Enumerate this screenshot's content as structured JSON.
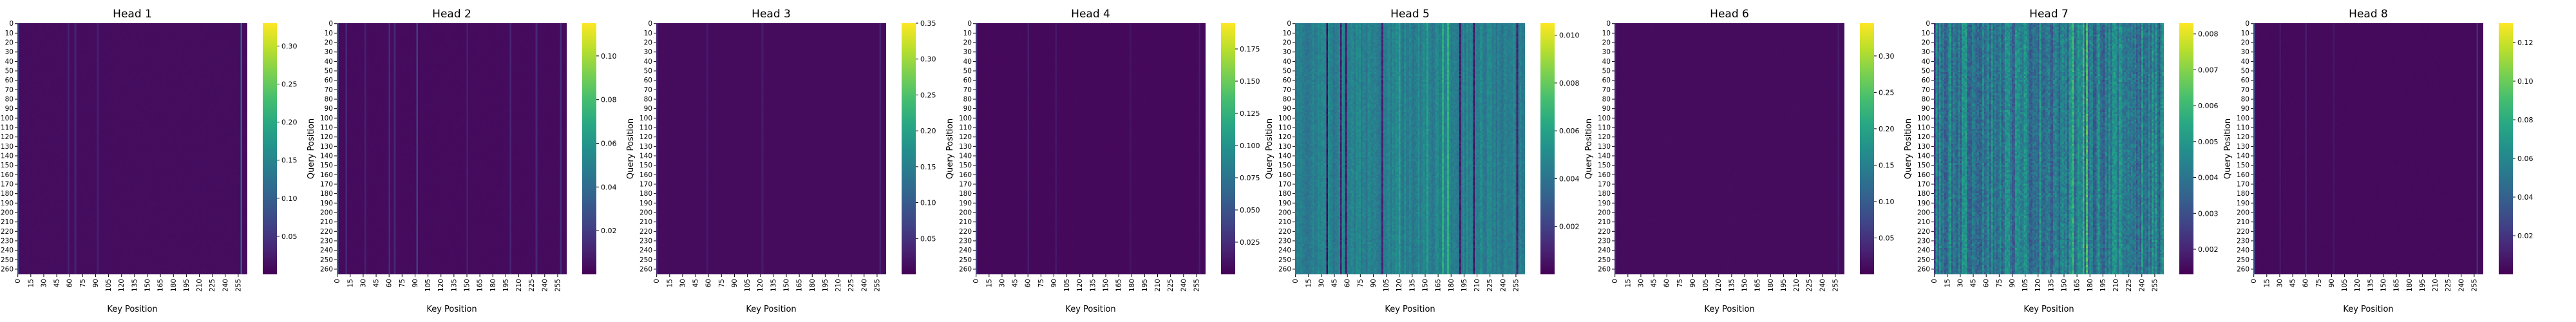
{
  "chart_data": [
    {
      "type": "heatmap",
      "title": "Head 1",
      "xlabel": "Key Position",
      "ylabel": "Query Position",
      "x_ticks": [
        0,
        15,
        30,
        45,
        60,
        75,
        90,
        105,
        120,
        135,
        150,
        165,
        180,
        195,
        210,
        225,
        240,
        255
      ],
      "y_ticks": [
        0,
        10,
        20,
        30,
        40,
        50,
        60,
        70,
        80,
        90,
        100,
        110,
        120,
        130,
        140,
        150,
        160,
        170,
        180,
        190,
        200,
        210,
        220,
        230,
        240,
        250,
        260
      ],
      "size": [
        266,
        266
      ],
      "colormap": "viridis",
      "colorbar": {
        "range": [
          0.0,
          0.33
        ],
        "ticks": [
          0.05,
          0.1,
          0.15,
          0.2,
          0.25,
          0.3
        ],
        "labels": [
          "0.05",
          "0.10",
          "0.15",
          "0.20",
          "0.25",
          "0.30"
        ]
      },
      "pattern": {
        "kind": "sparse",
        "bg": 0.01,
        "stripes": [
          {
            "x": 0,
            "v": 0.06
          },
          {
            "x": 57,
            "v": 0.03
          },
          {
            "x": 66,
            "v": 0.03
          },
          {
            "x": 92,
            "v": 0.03
          },
          {
            "x": 258,
            "v": 0.1
          }
        ]
      }
    },
    {
      "type": "heatmap",
      "title": "Head 2",
      "xlabel": "Key Position",
      "ylabel": "Query Position",
      "x_ticks": [
        0,
        15,
        30,
        45,
        60,
        75,
        90,
        105,
        120,
        135,
        150,
        165,
        180,
        195,
        210,
        225,
        240,
        255
      ],
      "y_ticks": [
        0,
        10,
        20,
        30,
        40,
        50,
        60,
        70,
        80,
        90,
        100,
        110,
        120,
        130,
        140,
        150,
        160,
        170,
        180,
        190,
        200,
        210,
        220,
        230,
        240,
        250,
        260
      ],
      "size": [
        266,
        266
      ],
      "colormap": "viridis",
      "colorbar": {
        "range": [
          0.0,
          0.115
        ],
        "ticks": [
          0.02,
          0.04,
          0.06,
          0.08,
          0.1
        ],
        "labels": [
          "0.02",
          "0.04",
          "0.06",
          "0.08",
          "0.10"
        ]
      },
      "pattern": {
        "kind": "sparse",
        "bg": 0.003,
        "stripes": [
          {
            "x": 0,
            "v": 0.04
          },
          {
            "x": 10,
            "v": 0.012
          },
          {
            "x": 32,
            "v": 0.01
          },
          {
            "x": 60,
            "v": 0.014
          },
          {
            "x": 66,
            "v": 0.012
          },
          {
            "x": 92,
            "v": 0.02
          },
          {
            "x": 150,
            "v": 0.01
          },
          {
            "x": 200,
            "v": 0.012
          },
          {
            "x": 230,
            "v": 0.012
          },
          {
            "x": 258,
            "v": 0.015
          }
        ]
      }
    },
    {
      "type": "heatmap",
      "title": "Head 3",
      "xlabel": "Key Position",
      "ylabel": "Query Position",
      "x_ticks": [
        0,
        15,
        30,
        45,
        60,
        75,
        90,
        105,
        120,
        135,
        150,
        165,
        180,
        195,
        210,
        225,
        240,
        255
      ],
      "y_ticks": [
        0,
        10,
        20,
        30,
        40,
        50,
        60,
        70,
        80,
        90,
        100,
        110,
        120,
        130,
        140,
        150,
        160,
        170,
        180,
        190,
        200,
        210,
        220,
        230,
        240,
        250,
        260
      ],
      "size": [
        266,
        266
      ],
      "colormap": "viridis",
      "colorbar": {
        "range": [
          0.0,
          0.35
        ],
        "ticks": [
          0.05,
          0.1,
          0.15,
          0.2,
          0.25,
          0.3,
          0.35
        ],
        "labels": [
          "0.05",
          "0.10",
          "0.15",
          "0.20",
          "0.25",
          "0.30",
          "0.35"
        ]
      },
      "pattern": {
        "kind": "sparse",
        "bg": 0.01,
        "stripes": [
          {
            "x": 0,
            "v": 0.04
          },
          {
            "x": 58,
            "v": 0.025
          },
          {
            "x": 121,
            "v": 0.025
          },
          {
            "x": 258,
            "v": 0.03
          }
        ]
      }
    },
    {
      "type": "heatmap",
      "title": "Head 4",
      "xlabel": "Key Position",
      "ylabel": "Query Position",
      "x_ticks": [
        0,
        15,
        30,
        45,
        60,
        75,
        90,
        105,
        120,
        135,
        150,
        165,
        180,
        195,
        210,
        225,
        240,
        255
      ],
      "y_ticks": [
        0,
        10,
        20,
        30,
        40,
        50,
        60,
        70,
        80,
        90,
        100,
        110,
        120,
        130,
        140,
        150,
        160,
        170,
        180,
        190,
        200,
        210,
        220,
        230,
        240,
        250,
        260
      ],
      "size": [
        266,
        266
      ],
      "colormap": "viridis",
      "colorbar": {
        "range": [
          0.0,
          0.195
        ],
        "ticks": [
          0.025,
          0.05,
          0.075,
          0.1,
          0.125,
          0.15,
          0.175
        ],
        "labels": [
          "0.025",
          "0.050",
          "0.075",
          "0.100",
          "0.125",
          "0.150",
          "0.175"
        ]
      },
      "pattern": {
        "kind": "sparse",
        "bg": 0.004,
        "stripes": [
          {
            "x": 0,
            "v": 0.03
          },
          {
            "x": 60,
            "v": 0.015
          },
          {
            "x": 92,
            "v": 0.012
          },
          {
            "x": 178,
            "v": 0.01
          },
          {
            "x": 258,
            "v": 0.015
          }
        ]
      }
    },
    {
      "type": "heatmap",
      "title": "Head 5",
      "xlabel": "Key Position",
      "ylabel": "Query Position",
      "x_ticks": [
        0,
        15,
        30,
        45,
        60,
        75,
        90,
        105,
        120,
        135,
        150,
        165,
        180,
        195,
        210,
        225,
        240,
        255
      ],
      "y_ticks": [
        0,
        10,
        20,
        30,
        40,
        50,
        60,
        70,
        80,
        90,
        100,
        110,
        120,
        130,
        140,
        150,
        160,
        170,
        180,
        190,
        200,
        210,
        220,
        230,
        240,
        250,
        260
      ],
      "size": [
        266,
        266
      ],
      "colormap": "viridis",
      "colorbar": {
        "range": [
          0.0,
          0.0105
        ],
        "ticks": [
          0.002,
          0.004,
          0.006,
          0.008,
          0.01
        ],
        "labels": [
          "0.002",
          "0.004",
          "0.006",
          "0.008",
          "0.010"
        ]
      },
      "pattern": {
        "kind": "dense",
        "bg": 0.0045,
        "noise": 0.0008,
        "stripes": [
          {
            "x": 35,
            "v": 0.0005
          },
          {
            "x": 52,
            "v": 0.0008
          },
          {
            "x": 58,
            "v": 0.0006
          },
          {
            "x": 100,
            "v": 0.001
          },
          {
            "x": 190,
            "v": 0.0005
          },
          {
            "x": 205,
            "v": 0.0006
          },
          {
            "x": 256,
            "v": 0.001
          },
          {
            "x": 120,
            "v": 0.006
          },
          {
            "x": 152,
            "v": 0.006
          },
          {
            "x": 170,
            "v": 0.0065
          },
          {
            "x": 175,
            "v": 0.0068
          }
        ]
      }
    },
    {
      "type": "heatmap",
      "title": "Head 6",
      "xlabel": "Key Position",
      "ylabel": "Query Position",
      "x_ticks": [
        0,
        15,
        30,
        45,
        60,
        75,
        90,
        105,
        120,
        135,
        150,
        165,
        180,
        195,
        210,
        225,
        240,
        255
      ],
      "y_ticks": [
        0,
        10,
        20,
        30,
        40,
        50,
        60,
        70,
        80,
        90,
        100,
        110,
        120,
        130,
        140,
        150,
        160,
        170,
        180,
        190,
        200,
        210,
        220,
        230,
        240,
        250,
        260
      ],
      "size": [
        266,
        266
      ],
      "colormap": "viridis",
      "colorbar": {
        "range": [
          0.0,
          0.345
        ],
        "ticks": [
          0.05,
          0.1,
          0.15,
          0.2,
          0.25,
          0.3
        ],
        "labels": [
          "0.05",
          "0.10",
          "0.15",
          "0.20",
          "0.25",
          "0.30"
        ]
      },
      "pattern": {
        "kind": "sparse",
        "bg": 0.01,
        "stripes": [
          {
            "x": 0,
            "v": 0.03
          },
          {
            "x": 258,
            "v": 0.025
          }
        ]
      }
    },
    {
      "type": "heatmap",
      "title": "Head 7",
      "xlabel": "Key Position",
      "ylabel": "Query Position",
      "x_ticks": [
        0,
        15,
        30,
        45,
        60,
        75,
        90,
        105,
        120,
        135,
        150,
        165,
        180,
        195,
        210,
        225,
        240,
        255
      ],
      "y_ticks": [
        0,
        10,
        20,
        30,
        40,
        50,
        60,
        70,
        80,
        90,
        100,
        110,
        120,
        130,
        140,
        150,
        160,
        170,
        180,
        190,
        200,
        210,
        220,
        230,
        240,
        250,
        260
      ],
      "size": [
        266,
        266
      ],
      "colormap": "viridis",
      "colorbar": {
        "range": [
          0.0013,
          0.0083
        ],
        "ticks": [
          0.002,
          0.003,
          0.004,
          0.005,
          0.006,
          0.007,
          0.008
        ],
        "labels": [
          "0.002",
          "0.003",
          "0.004",
          "0.005",
          "0.006",
          "0.007",
          "0.008"
        ]
      },
      "pattern": {
        "kind": "dense",
        "bg": 0.0042,
        "noise": 0.0011,
        "stripes": [
          {
            "x": 0,
            "v": 0.0025
          },
          {
            "x": 160,
            "v": 0.0058
          },
          {
            "x": 172,
            "v": 0.006
          },
          {
            "x": 176,
            "v": 0.0062
          }
        ]
      }
    },
    {
      "type": "heatmap",
      "title": "Head 8",
      "xlabel": "Key Position",
      "ylabel": "Query Position",
      "x_ticks": [
        0,
        15,
        30,
        45,
        60,
        75,
        90,
        105,
        120,
        135,
        150,
        165,
        180,
        195,
        210,
        225,
        240,
        255
      ],
      "y_ticks": [
        0,
        10,
        20,
        30,
        40,
        50,
        60,
        70,
        80,
        90,
        100,
        110,
        120,
        130,
        140,
        150,
        160,
        170,
        180,
        190,
        200,
        210,
        220,
        230,
        240,
        250,
        260
      ],
      "size": [
        266,
        266
      ],
      "colormap": "viridis",
      "colorbar": {
        "range": [
          0.0,
          0.13
        ],
        "ticks": [
          0.02,
          0.04,
          0.06,
          0.08,
          0.1,
          0.12
        ],
        "labels": [
          "0.02",
          "0.04",
          "0.06",
          "0.08",
          "0.10",
          "0.12"
        ]
      },
      "pattern": {
        "kind": "sparse",
        "bg": 0.003,
        "stripes": [
          {
            "x": 0,
            "v": 0.03
          },
          {
            "x": 30,
            "v": 0.008
          },
          {
            "x": 60,
            "v": 0.01
          },
          {
            "x": 92,
            "v": 0.008
          },
          {
            "x": 258,
            "v": 0.015
          }
        ]
      }
    }
  ]
}
